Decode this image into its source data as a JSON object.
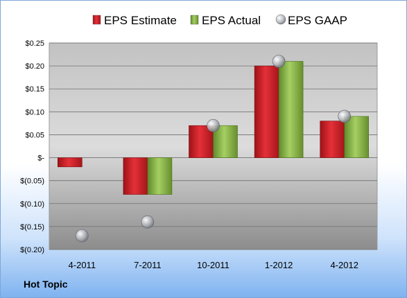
{
  "footer": {
    "company": "Hot Topic"
  },
  "colors": {
    "estimate": "#d8262e",
    "actual": "#8db84a",
    "gaap": "#b9bcc2"
  },
  "chart_data": {
    "type": "bar",
    "title": "",
    "xlabel": "",
    "ylabel": "",
    "categories": [
      "4-2011",
      "7-2011",
      "10-2011",
      "1-2012",
      "4-2012"
    ],
    "series": [
      {
        "name": "EPS Estimate",
        "kind": "bar",
        "values": [
          -0.02,
          -0.08,
          0.07,
          0.2,
          0.08
        ]
      },
      {
        "name": "EPS Actual",
        "kind": "bar",
        "values": [
          null,
          -0.08,
          0.07,
          0.21,
          0.09
        ]
      },
      {
        "name": "EPS GAAP",
        "kind": "point",
        "values": [
          -0.17,
          -0.14,
          0.07,
          0.21,
          0.09
        ]
      }
    ],
    "ylim": [
      -0.2,
      0.25
    ],
    "yticks": [
      0.25,
      0.2,
      0.15,
      0.1,
      0.05,
      0,
      -0.05,
      -0.1,
      -0.15,
      -0.2
    ],
    "ytick_labels": [
      "$0.25",
      "$0.20",
      "$0.15",
      "$0.10",
      "$0.05",
      "$-",
      "$(0.05)",
      "$(0.10)",
      "$(0.15)",
      "$(0.20)"
    ],
    "legend_position": "top",
    "grid": true
  }
}
